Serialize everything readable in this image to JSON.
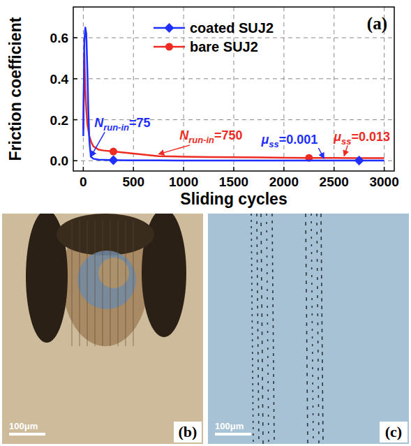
{
  "chart_data": {
    "type": "line",
    "title": "(a)",
    "x_label": "Sliding cycles",
    "y_label": "Friction coefficient",
    "xlim": [
      -100,
      3100
    ],
    "xticks": [
      0,
      500,
      1000,
      1500,
      2000,
      2500,
      3000
    ],
    "ylim": [
      -0.05,
      0.75
    ],
    "yticks": [
      {
        "value": 0,
        "label": "0.0"
      },
      {
        "value": 0.2,
        "label": "0.2"
      },
      {
        "value": 0.4,
        "label": "0.4"
      },
      {
        "value": 0.6,
        "label": "0.6"
      }
    ],
    "grid": true,
    "legend": "top",
    "series": [
      {
        "name": "coated SUJ2",
        "color": "#1f2fff",
        "marker": "diamond",
        "x": [
          0,
          10,
          20,
          30,
          40,
          50,
          60,
          75,
          100,
          150,
          300,
          500,
          750,
          1000,
          1250,
          1500,
          1750,
          2000,
          2250,
          2500,
          2750,
          3000
        ],
        "values": [
          0.12,
          0.58,
          0.65,
          0.62,
          0.45,
          0.25,
          0.1,
          0.02,
          0.01,
          0.005,
          0.003,
          0.002,
          0.002,
          0.001,
          0.001,
          0.001,
          0.001,
          0.001,
          0.001,
          0.001,
          0.001,
          0.001
        ]
      },
      {
        "name": "bare SUJ2",
        "color": "#ee2b22",
        "marker": "circle",
        "x": [
          0,
          10,
          20,
          30,
          40,
          60,
          80,
          100,
          150,
          200,
          300,
          400,
          500,
          600,
          750,
          1000,
          1250,
          1500,
          1750,
          2000,
          2250,
          2500,
          2750,
          3000
        ],
        "values": [
          0.15,
          0.53,
          0.35,
          0.25,
          0.18,
          0.12,
          0.09,
          0.07,
          0.055,
          0.05,
          0.045,
          0.04,
          0.035,
          0.03,
          0.022,
          0.02,
          0.018,
          0.017,
          0.016,
          0.015,
          0.014,
          0.014,
          0.013,
          0.013
        ]
      }
    ],
    "annotations": [
      {
        "symbol": "N",
        "subscript": "run-in",
        "text": "=75",
        "color": "#1f2fff",
        "x": 75,
        "y": 0.01
      },
      {
        "symbol": "N",
        "subscript": "run-in",
        "text": "=750",
        "color": "#ee2b22",
        "x": 750,
        "y": 0.022
      },
      {
        "symbol": "μ",
        "subscript": "ss",
        "text": "=0.013",
        "color": "#ee2b22",
        "x": 2600,
        "y": 0.013
      },
      {
        "symbol": "μ",
        "subscript": "ss",
        "text": "=0.001",
        "color": "#1f2fff",
        "x": 2400,
        "y": 0.001
      }
    ]
  },
  "images": [
    {
      "label": "(b)",
      "scale_bar": "100μm"
    },
    {
      "label": "(c)",
      "scale_bar": "100μm"
    }
  ]
}
